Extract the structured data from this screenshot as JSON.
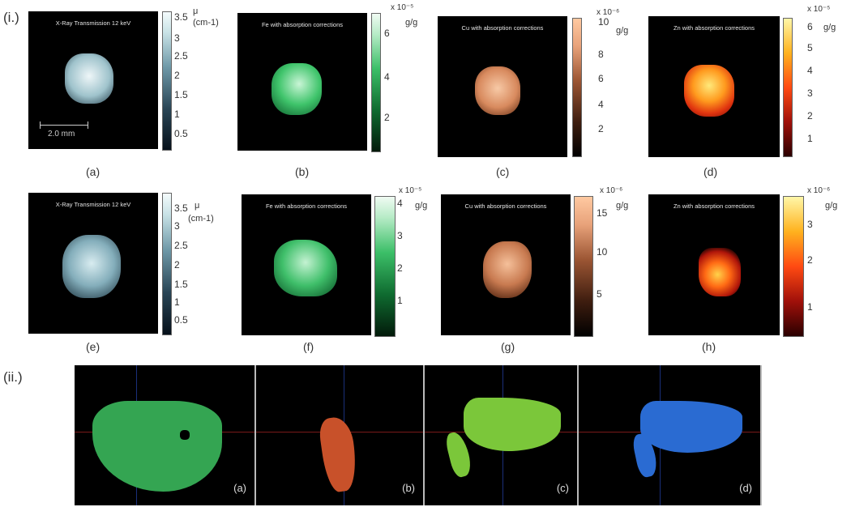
{
  "section_labels": {
    "i": "(i.)",
    "ii": "(ii.)"
  },
  "panels": [
    {
      "caption": "(a)",
      "title": "X-Ray Transmission 12 keV",
      "unit_line1": "μ",
      "unit_line2": "(cm-1)",
      "exponent": "",
      "ticks": [
        "3.5",
        "3",
        "2.5",
        "2",
        "1.5",
        "1",
        "0.5"
      ],
      "scale_bar": "2.0 mm"
    },
    {
      "caption": "(b)",
      "title": "Fe with absorption corrections",
      "unit_line1": "g/g",
      "unit_line2": "",
      "exponent": "x 10⁻⁵",
      "ticks": [
        "6",
        "4",
        "2"
      ]
    },
    {
      "caption": "(c)",
      "title": "Cu with absorption corrections",
      "unit_line1": "g/g",
      "unit_line2": "",
      "exponent": "x 10⁻⁶",
      "ticks": [
        "10",
        "8",
        "6",
        "4",
        "2"
      ]
    },
    {
      "caption": "(d)",
      "title": "Zn with absorption corrections",
      "unit_line1": "g/g",
      "unit_line2": "",
      "exponent": "x 10⁻⁵",
      "ticks": [
        "6",
        "5",
        "4",
        "3",
        "2",
        "1"
      ]
    },
    {
      "caption": "(e)",
      "title": "X-Ray Transmission 12 keV",
      "unit_line1": "μ",
      "unit_line2": "(cm-1)",
      "exponent": "",
      "ticks": [
        "3.5",
        "3",
        "2.5",
        "2",
        "1.5",
        "1",
        "0.5"
      ]
    },
    {
      "caption": "(f)",
      "title": "Fe with absorption corrections",
      "unit_line1": "g/g",
      "unit_line2": "",
      "exponent": "x 10⁻⁵",
      "ticks": [
        "4",
        "3",
        "2",
        "1"
      ]
    },
    {
      "caption": "(g)",
      "title": "Cu with absorption corrections",
      "unit_line1": "g/g",
      "unit_line2": "",
      "exponent": "x 10⁻⁶",
      "ticks": [
        "15",
        "10",
        "5"
      ]
    },
    {
      "caption": "(h)",
      "title": "Zn with absorption corrections",
      "unit_line1": "g/g",
      "unit_line2": "",
      "exponent": "x 10⁻⁶",
      "ticks": [
        "3",
        "2",
        "1"
      ]
    }
  ],
  "segmentation_labels": [
    "(a)",
    "(b)",
    "(c)",
    "(d)"
  ]
}
